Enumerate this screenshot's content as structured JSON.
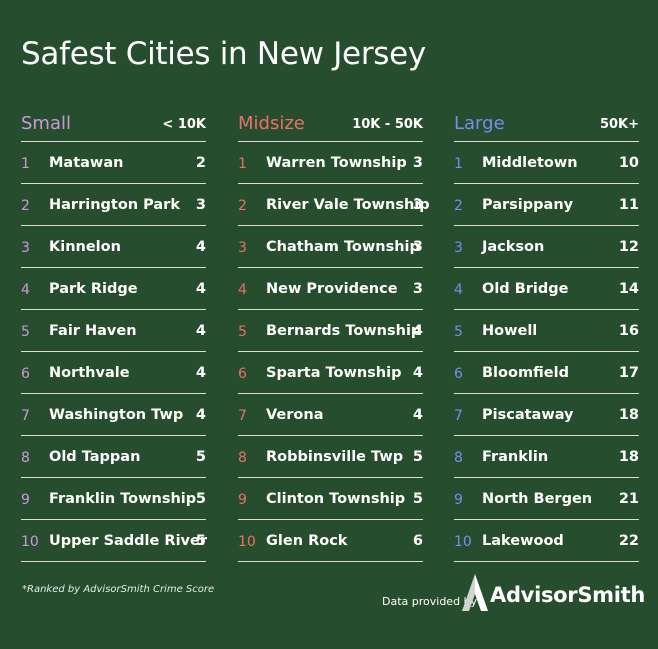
{
  "title": "Safest Cities in New Jersey",
  "columns": [
    {
      "name": "Small",
      "range": "< 10K",
      "accent": "#c79bd6",
      "rows": [
        {
          "rank": "1",
          "city": "Matawan",
          "score": "2"
        },
        {
          "rank": "2",
          "city": "Harrington Park",
          "score": "3"
        },
        {
          "rank": "3",
          "city": "Kinnelon",
          "score": "4"
        },
        {
          "rank": "4",
          "city": "Park Ridge",
          "score": "4"
        },
        {
          "rank": "5",
          "city": "Fair Haven",
          "score": "4"
        },
        {
          "rank": "6",
          "city": "Northvale",
          "score": "4"
        },
        {
          "rank": "7",
          "city": "Washington Twp",
          "score": "4"
        },
        {
          "rank": "8",
          "city": "Old Tappan",
          "score": "5"
        },
        {
          "rank": "9",
          "city": "Franklin Township",
          "score": "5"
        },
        {
          "rank": "10",
          "city": "Upper Saddle River",
          "score": "5"
        }
      ]
    },
    {
      "name": "Midsize",
      "range": "10K - 50K",
      "accent": "#ee6d6d",
      "rows": [
        {
          "rank": "1",
          "city": "Warren Township",
          "score": "3"
        },
        {
          "rank": "2",
          "city": "River Vale Township",
          "score": "3"
        },
        {
          "rank": "3",
          "city": "Chatham Township",
          "score": "3"
        },
        {
          "rank": "4",
          "city": "New Providence",
          "score": "3"
        },
        {
          "rank": "5",
          "city": "Bernards Township",
          "score": "4"
        },
        {
          "rank": "6",
          "city": "Sparta Township",
          "score": "4"
        },
        {
          "rank": "7",
          "city": "Verona",
          "score": "4"
        },
        {
          "rank": "8",
          "city": "Robbinsville Twp",
          "score": "5"
        },
        {
          "rank": "9",
          "city": "Clinton Township",
          "score": "5"
        },
        {
          "rank": "10",
          "city": "Glen Rock",
          "score": "6"
        }
      ]
    },
    {
      "name": "Large",
      "range": "50K+",
      "accent": "#7a8cf0",
      "rows": [
        {
          "rank": "1",
          "city": "Middletown",
          "score": "10"
        },
        {
          "rank": "2",
          "city": "Parsippany",
          "score": "11"
        },
        {
          "rank": "3",
          "city": "Jackson",
          "score": "12"
        },
        {
          "rank": "4",
          "city": "Old Bridge",
          "score": "14"
        },
        {
          "rank": "5",
          "city": "Howell",
          "score": "16"
        },
        {
          "rank": "6",
          "city": "Bloomfield",
          "score": "17"
        },
        {
          "rank": "7",
          "city": "Piscataway",
          "score": "18"
        },
        {
          "rank": "8",
          "city": "Franklin",
          "score": "18"
        },
        {
          "rank": "9",
          "city": "North Bergen",
          "score": "21"
        },
        {
          "rank": "10",
          "city": "Lakewood",
          "score": "22"
        }
      ]
    }
  ],
  "footnote": "*Ranked by AdvisorSmith Crime Score",
  "credit": {
    "prefix": "Data provided by",
    "brand": "AdvisorSmith",
    "logo_icon": "advisorsmith-a-logo-icon"
  }
}
